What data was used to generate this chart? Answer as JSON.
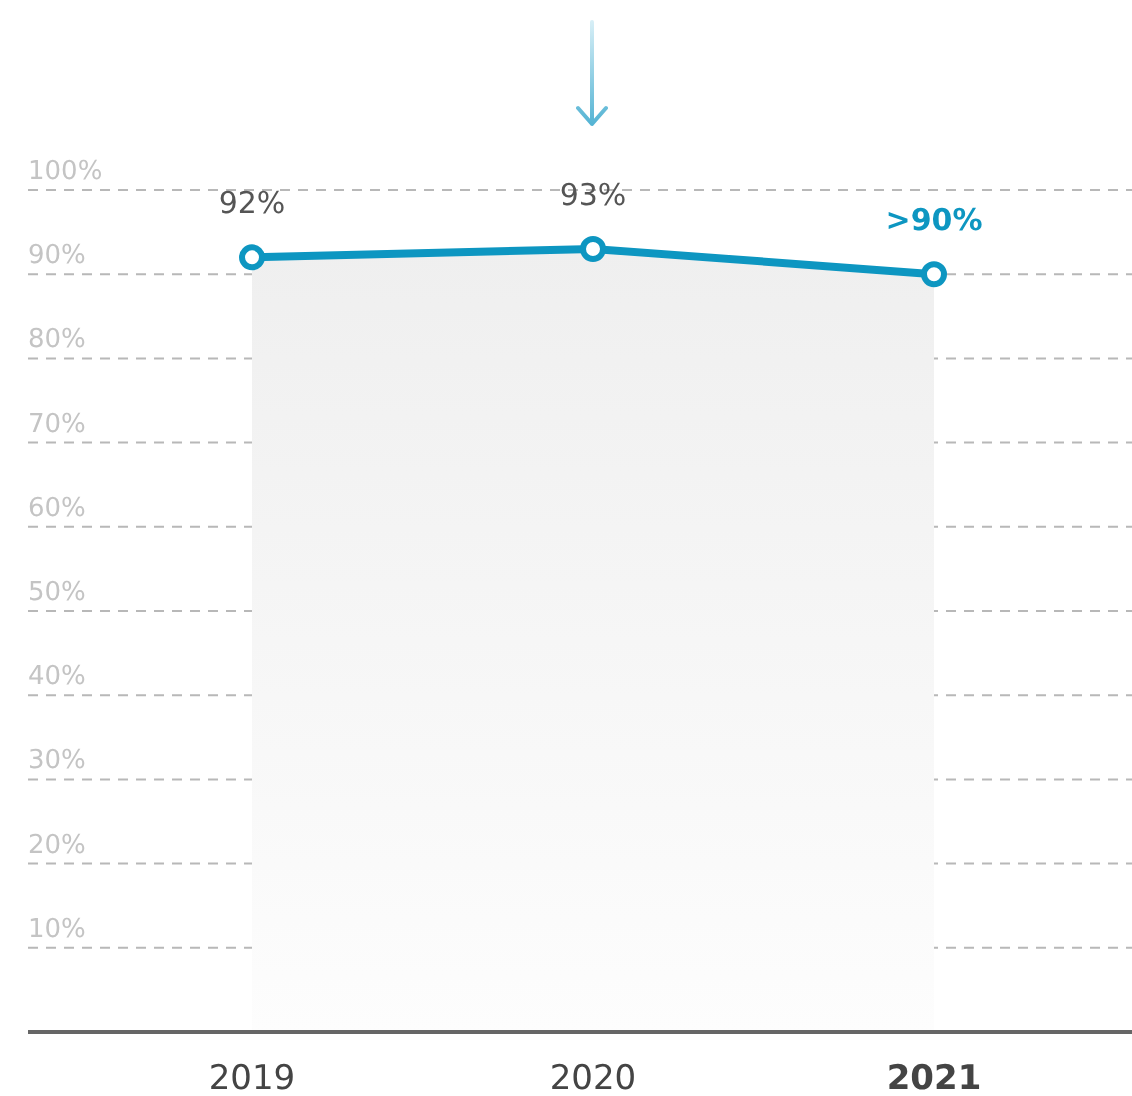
{
  "chart_data": {
    "type": "area",
    "categories": [
      "2019",
      "2020",
      "2021"
    ],
    "series": [
      {
        "color": "#0d96c1",
        "values": [
          92,
          93,
          90
        ],
        "value_labels": [
          "92%",
          "93%",
          ">90%"
        ]
      }
    ],
    "ylim": [
      0,
      100
    ],
    "yticks": [
      {
        "value": 10,
        "label": "10%"
      },
      {
        "value": 20,
        "label": "20%"
      },
      {
        "value": 30,
        "label": "30%"
      },
      {
        "value": 40,
        "label": "40%"
      },
      {
        "value": 50,
        "label": "50%"
      },
      {
        "value": 60,
        "label": "60%"
      },
      {
        "value": 70,
        "label": "70%"
      },
      {
        "value": 80,
        "label": "80%"
      },
      {
        "value": 90,
        "label": "90%"
      },
      {
        "value": 100,
        "label": "100%"
      }
    ],
    "grid": "y",
    "marker": "circle",
    "line_style": "solid"
  }
}
